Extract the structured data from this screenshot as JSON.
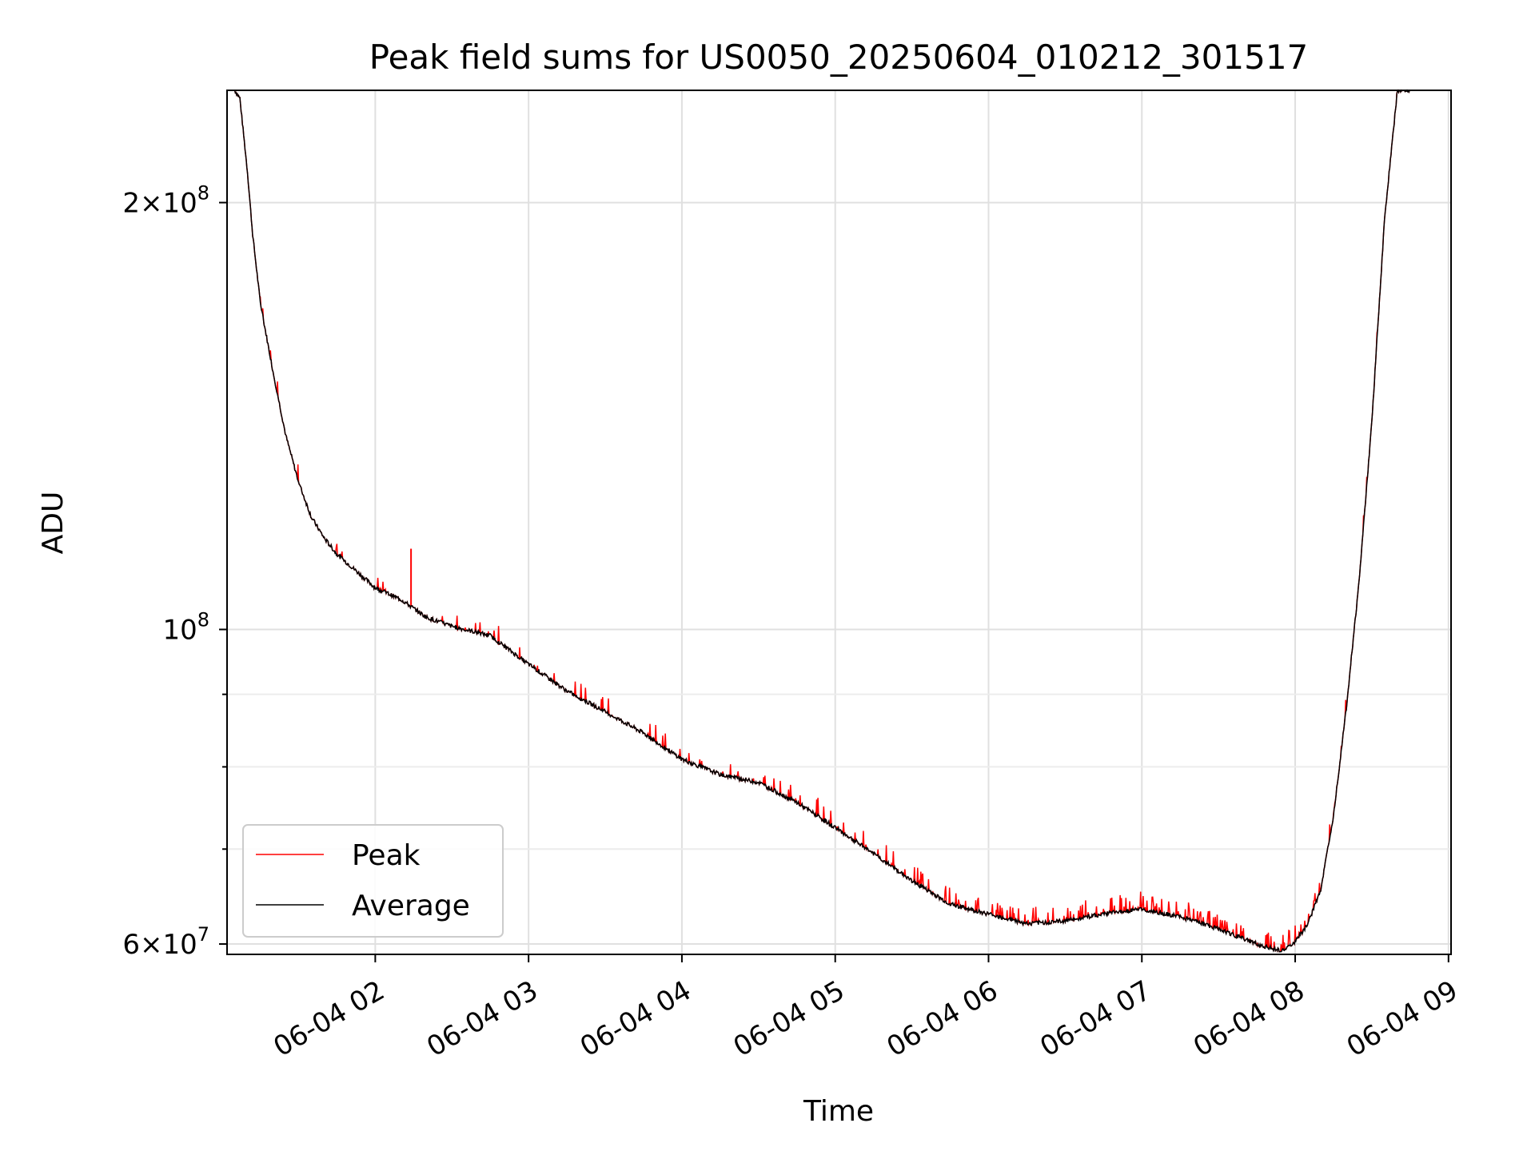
{
  "chart_data": {
    "type": "line",
    "title": "Peak field sums for US0050_20250604_010212_301517",
    "xlabel": "Time",
    "ylabel": "ADU",
    "x_axis": {
      "kind": "date",
      "range": [
        "2025-06-04 01:02",
        "2025-06-04 09:01"
      ],
      "tick_labels": [
        "06-04 02",
        "06-04 03",
        "06-04 04",
        "06-04 05",
        "06-04 06",
        "06-04 07",
        "06-04 08",
        "06-04 09"
      ]
    },
    "y_axis": {
      "scale": "log",
      "range": [
        59000000,
        240000000
      ],
      "major_ticks": [
        {
          "value": 60000000,
          "mantissa": "6",
          "base": "10",
          "exponent": "7"
        },
        {
          "value": 100000000,
          "mantissa": "",
          "base": "10",
          "exponent": "8"
        },
        {
          "value": 200000000,
          "mantissa": "2",
          "base": "10",
          "exponent": "8"
        }
      ],
      "minor_ticks": [
        70000000,
        80000000,
        90000000
      ]
    },
    "grid": true,
    "legend": {
      "position": "lower-left",
      "entries": [
        "Peak",
        "Average"
      ]
    },
    "series": [
      {
        "name": "Average",
        "color": "#000000",
        "x": [
          "2025-06-04 01:05",
          "2025-06-04 01:07",
          "2025-06-04 01:10",
          "2025-06-04 01:12",
          "2025-06-04 01:15",
          "2025-06-04 01:20",
          "2025-06-04 01:25",
          "2025-06-04 01:30",
          "2025-06-04 01:35",
          "2025-06-04 01:40",
          "2025-06-04 01:45",
          "2025-06-04 01:50",
          "2025-06-04 02:00",
          "2025-06-04 02:10",
          "2025-06-04 02:20",
          "2025-06-04 02:30",
          "2025-06-04 02:45",
          "2025-06-04 03:00",
          "2025-06-04 03:15",
          "2025-06-04 03:30",
          "2025-06-04 03:45",
          "2025-06-04 04:00",
          "2025-06-04 04:15",
          "2025-06-04 04:30",
          "2025-06-04 04:45",
          "2025-06-04 05:00",
          "2025-06-04 05:15",
          "2025-06-04 05:30",
          "2025-06-04 05:45",
          "2025-06-04 06:00",
          "2025-06-04 06:15",
          "2025-06-04 06:30",
          "2025-06-04 06:45",
          "2025-06-04 07:00",
          "2025-06-04 07:15",
          "2025-06-04 07:30",
          "2025-06-04 07:45",
          "2025-06-04 07:55",
          "2025-06-04 08:00",
          "2025-06-04 08:05",
          "2025-06-04 08:10",
          "2025-06-04 08:15",
          "2025-06-04 08:20",
          "2025-06-04 08:25",
          "2025-06-04 08:30",
          "2025-06-04 08:35",
          "2025-06-04 08:40",
          "2025-06-04 08:45"
        ],
        "y": [
          240000000,
          237000000,
          210000000,
          190000000,
          170000000,
          152000000,
          137000000,
          127000000,
          120000000,
          116000000,
          113000000,
          111000000,
          107000000,
          105000000,
          102000000,
          100500000,
          99000000,
          94500000,
          90500000,
          87500000,
          84500000,
          81000000,
          79000000,
          78000000,
          75500000,
          72500000,
          69500000,
          66500000,
          64000000,
          63000000,
          62000000,
          62300000,
          63000000,
          63500000,
          62700000,
          61500000,
          60000000,
          59300000,
          60200000,
          62000000,
          65500000,
          74000000,
          88000000,
          108000000,
          140000000,
          195000000,
          240000000,
          240000000
        ]
      },
      {
        "name": "Peak",
        "color": "#ff0000",
        "note_spikes": [
          {
            "x": "2025-06-04 02:14",
            "y": 114000000
          }
        ]
      }
    ]
  }
}
